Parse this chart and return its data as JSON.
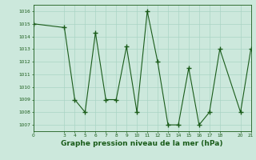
{
  "x": [
    0,
    3,
    4,
    5,
    6,
    7,
    8,
    9,
    10,
    11,
    12,
    13,
    14,
    15,
    16,
    17,
    18,
    20,
    21
  ],
  "y": [
    1015,
    1014.7,
    1009,
    1008,
    1014.3,
    1009,
    1009,
    1013.2,
    1008,
    1016,
    1012,
    1007,
    1007,
    1011.5,
    1007,
    1008,
    1013,
    1008,
    1013
  ],
  "xlim": [
    0,
    21
  ],
  "ylim": [
    1006.5,
    1016.5
  ],
  "yticks": [
    1007,
    1008,
    1009,
    1010,
    1011,
    1012,
    1013,
    1014,
    1015,
    1016
  ],
  "xticks": [
    0,
    3,
    4,
    5,
    6,
    7,
    8,
    9,
    10,
    11,
    12,
    13,
    14,
    15,
    16,
    17,
    18,
    20,
    21
  ],
  "line_color": "#1a5c1a",
  "marker_color": "#1a5c1a",
  "bg_color": "#cce8dc",
  "grid_color": "#aad4c4",
  "title": "Graphe pression niveau de la mer (hPa)",
  "title_color": "#1a5c1a",
  "title_fontsize": 6.5
}
